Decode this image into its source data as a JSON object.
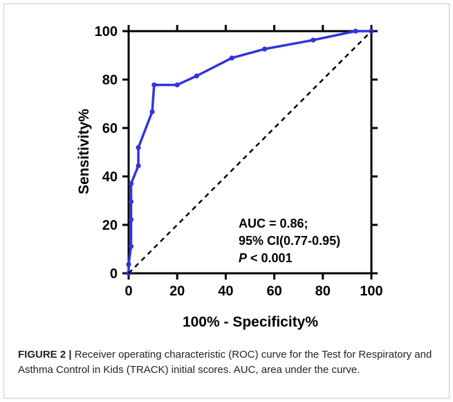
{
  "chart_data": {
    "type": "line",
    "xlabel": "100% - Specificity%",
    "ylabel": "Sensitivity%",
    "xlim": [
      0,
      100
    ],
    "ylim": [
      0,
      100
    ],
    "xticks": [
      "0",
      "20",
      "40",
      "60",
      "80",
      "100"
    ],
    "yticks": [
      "0",
      "20",
      "40",
      "60",
      "80",
      "100"
    ],
    "grid": false,
    "series": [
      {
        "color": "#3333dd",
        "x": [
          0,
          0,
          1,
          1,
          1,
          1,
          4,
          4,
          9.7,
          10.5,
          20,
          28,
          42.5,
          56,
          76,
          93.5,
          100
        ],
        "y": [
          0,
          3.7,
          11.1,
          22.2,
          29.6,
          37,
          44.4,
          51.9,
          66.7,
          77.8,
          77.8,
          81.5,
          88.9,
          92.6,
          96.3,
          100,
          100
        ]
      },
      {
        "style": "dashed",
        "color": "#000000",
        "x": [
          0,
          100
        ],
        "y": [
          0,
          100
        ]
      }
    ],
    "annotations": [
      "AUC = 0.86;",
      "95% CI(0.77-0.95)",
      "P",
      " < 0.001"
    ]
  },
  "caption": {
    "label": "FIGURE 2 |",
    "text": " Receiver operating characteristic (ROC) curve for the Test for Respiratory and Asthma Control in Kids (TRACK) initial scores. AUC, area under the curve."
  }
}
